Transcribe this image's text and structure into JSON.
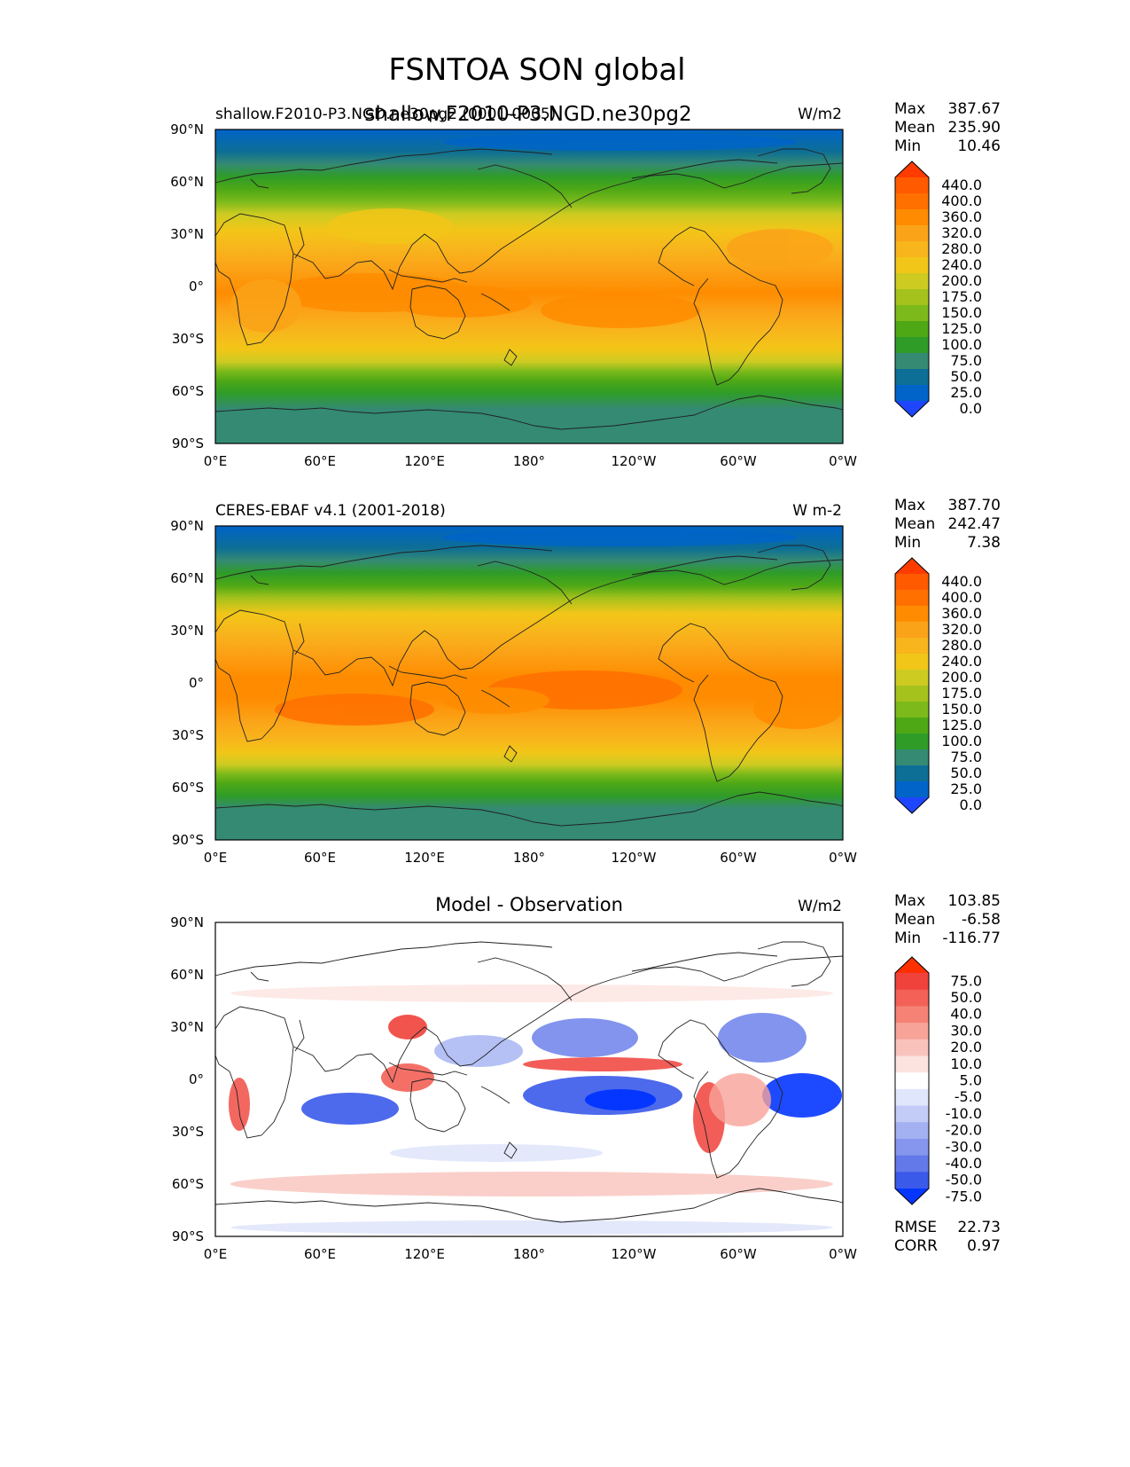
{
  "figure": {
    "title": "FSNTOA SON global",
    "overlay_title": "shallow.F2010-P3.NGD.ne30pg2"
  },
  "axes": {
    "lat_ticks": [
      "90°N",
      "60°N",
      "30°N",
      "0°",
      "30°S",
      "60°S",
      "90°S"
    ],
    "lon_ticks": [
      "0°E",
      "60°E",
      "120°E",
      "180°",
      "120°W",
      "60°W",
      "0°W"
    ]
  },
  "panels": [
    {
      "left_title": "shallow.F2010-P3.NGD.ne30pg2 (0001-0005)",
      "center_title": "",
      "units": "W/m2",
      "stats": [
        {
          "label": "Max",
          "value": "387.67"
        },
        {
          "label": "Mean",
          "value": "235.90"
        },
        {
          "label": "Min",
          "value": "10.46"
        }
      ]
    },
    {
      "left_title": "CERES-EBAF v4.1 (2001-2018)",
      "center_title": "",
      "units": "W m-2",
      "stats": [
        {
          "label": "Max",
          "value": "387.70"
        },
        {
          "label": "Mean",
          "value": "242.47"
        },
        {
          "label": "Min",
          "value": "7.38"
        }
      ]
    },
    {
      "left_title": "",
      "center_title": "Model - Observation",
      "units": "W/m2",
      "stats": [
        {
          "label": "Max",
          "value": "103.85"
        },
        {
          "label": "Mean",
          "value": "-6.58"
        },
        {
          "label": "Min",
          "value": "-116.77"
        }
      ],
      "extra_stats": [
        {
          "label": "RMSE",
          "value": "22.73"
        },
        {
          "label": "CORR",
          "value": "0.97"
        }
      ]
    }
  ],
  "colorbars": {
    "main": {
      "labels": [
        "440.0",
        "400.0",
        "360.0",
        "320.0",
        "280.0",
        "240.0",
        "200.0",
        "175.0",
        "150.0",
        "125.0",
        "100.0",
        "75.0",
        "50.0",
        "25.0",
        "0.0"
      ],
      "colors": [
        "#ff3b00",
        "#ff5a00",
        "#ff7000",
        "#ff8c00",
        "#fba318",
        "#f8b51c",
        "#f2c618",
        "#cdcb22",
        "#a5c21c",
        "#7cba1b",
        "#4ea816",
        "#2f9c28",
        "#348a73",
        "#0d6e96",
        "#0064c8",
        "#1e46ff"
      ]
    },
    "diff": {
      "labels": [
        "75.0",
        "50.0",
        "40.0",
        "30.0",
        "20.0",
        "10.0",
        "5.0",
        "-5.0",
        "-10.0",
        "-20.0",
        "-30.0",
        "-40.0",
        "-50.0",
        "-75.0"
      ],
      "colors": [
        "#ff3000",
        "#f0413a",
        "#f36157",
        "#f58275",
        "#f7a398",
        "#f9c3bc",
        "#fde3e0",
        "#ffffff",
        "#e0e6fb",
        "#c3ccf6",
        "#a3b0f2",
        "#8696ee",
        "#6379ea",
        "#3a5aea",
        "#0536ff"
      ]
    }
  },
  "chart_data": [
    {
      "type": "heatmap",
      "title": "shallow.F2010-P3.NGD.ne30pg2 (0001-0005)",
      "variable": "FSNTOA",
      "season": "SON",
      "units": "W/m2",
      "projection": "PlateCarree",
      "xlim": [
        0,
        360
      ],
      "ylim": [
        -90,
        90
      ],
      "max": 387.67,
      "mean": 235.9,
      "min": 10.46,
      "levels": [
        0,
        25,
        50,
        75,
        100,
        125,
        150,
        175,
        200,
        240,
        280,
        320,
        360,
        400,
        440
      ],
      "zonal_mean": {
        "lat": [
          90,
          75,
          60,
          45,
          30,
          15,
          0,
          -15,
          -30,
          -45,
          -60,
          -75,
          -90
        ],
        "value": [
          25,
          60,
          125,
          190,
          240,
          290,
          300,
          305,
          295,
          230,
          120,
          70,
          60
        ]
      }
    },
    {
      "type": "heatmap",
      "title": "CERES-EBAF v4.1 (2001-2018)",
      "variable": "FSNTOA",
      "season": "SON",
      "units": "W m-2",
      "projection": "PlateCarree",
      "xlim": [
        0,
        360
      ],
      "ylim": [
        -90,
        90
      ],
      "max": 387.7,
      "mean": 242.47,
      "min": 7.38,
      "levels": [
        0,
        25,
        50,
        75,
        100,
        125,
        150,
        175,
        200,
        240,
        280,
        320,
        360,
        400,
        440
      ],
      "zonal_mean": {
        "lat": [
          90,
          75,
          60,
          45,
          30,
          15,
          0,
          -15,
          -30,
          -45,
          -60,
          -75,
          -90
        ],
        "value": [
          25,
          60,
          130,
          200,
          260,
          305,
          315,
          320,
          295,
          225,
          120,
          70,
          60
        ]
      }
    },
    {
      "type": "heatmap",
      "title": "Model - Observation",
      "units": "W/m2",
      "projection": "PlateCarree",
      "xlim": [
        0,
        360
      ],
      "ylim": [
        -90,
        90
      ],
      "max": 103.85,
      "mean": -6.58,
      "min": -116.77,
      "rmse": 22.73,
      "corr": 0.97,
      "levels": [
        -75,
        -50,
        -40,
        -30,
        -20,
        -10,
        -5,
        5,
        10,
        20,
        30,
        40,
        50,
        75
      ]
    }
  ]
}
